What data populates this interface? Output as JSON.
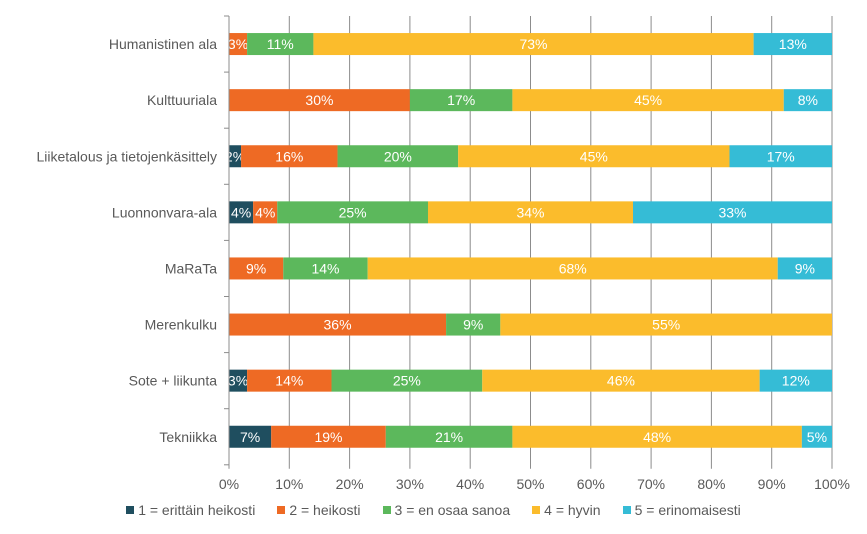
{
  "chart_data": {
    "type": "bar",
    "orientation": "horizontal",
    "stacked": "percent",
    "title": "",
    "xlabel": "",
    "ylabel": "",
    "xlim": [
      0,
      100
    ],
    "x_ticks": [
      "0%",
      "10%",
      "20%",
      "30%",
      "40%",
      "50%",
      "60%",
      "70%",
      "80%",
      "90%",
      "100%"
    ],
    "grid": true,
    "legend_position": "bottom",
    "categories": [
      "Humanistinen ala",
      "Kulttuuriala",
      "Liiketalous ja tietojenkäsittely",
      "Luonnonvara-ala",
      "MaRaTa",
      "Merenkulku",
      "Sote + liikunta",
      "Tekniikka"
    ],
    "series": [
      {
        "name": "1 = erittäin heikosti",
        "color": "#1f4e5f",
        "values": [
          0,
          0,
          2,
          4,
          0,
          0,
          3,
          7
        ]
      },
      {
        "name": "2 = heikosti",
        "color": "#ee6a24",
        "values": [
          3,
          30,
          16,
          4,
          9,
          36,
          14,
          19
        ]
      },
      {
        "name": "3 = en osaa sanoa",
        "color": "#5cb85c",
        "values": [
          11,
          17,
          20,
          25,
          14,
          9,
          25,
          21
        ]
      },
      {
        "name": "4 = hyvin",
        "color": "#fbbc2c",
        "values": [
          73,
          45,
          45,
          34,
          68,
          55,
          46,
          48
        ]
      },
      {
        "name": "5 = erinomaisesti",
        "color": "#35bcd6",
        "values": [
          13,
          8,
          17,
          33,
          9,
          0,
          12,
          5
        ]
      }
    ]
  }
}
